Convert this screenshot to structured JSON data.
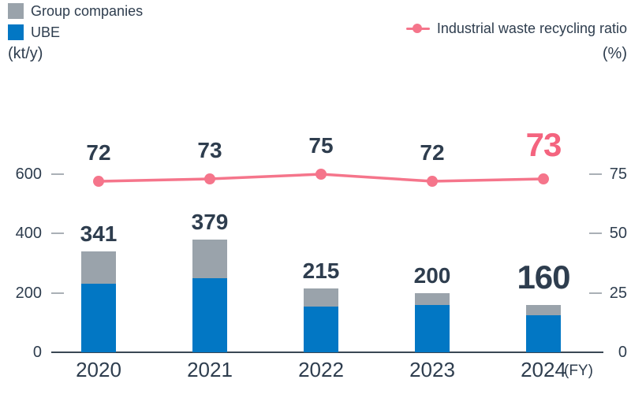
{
  "legend": {
    "group_companies": "Group companies",
    "ube": "UBE",
    "recycling_ratio": "Industrial waste recycling ratio"
  },
  "colors": {
    "navy": "#2e3d4e",
    "blue": "#0277c4",
    "gray": "#9aa3ab",
    "pink": "#f5758b",
    "pink_strong": "#f4647f",
    "dash": "#aab0b6",
    "axis": "#3a4754"
  },
  "chart_data": {
    "type": "bar",
    "subtype": "stacked-bars-with-line-overlay",
    "categories": [
      "2020",
      "2021",
      "2022",
      "2023",
      "2024"
    ],
    "fy_suffix": "(FY)",
    "series": [
      {
        "name": "UBE",
        "kind": "bar",
        "stack": "waste",
        "color_key": "blue",
        "values": [
          230,
          250,
          155,
          160,
          125
        ]
      },
      {
        "name": "Group companies",
        "kind": "bar",
        "stack": "waste",
        "color_key": "gray",
        "values": [
          111,
          129,
          60,
          40,
          35
        ]
      },
      {
        "name": "Industrial waste recycling ratio",
        "kind": "line",
        "axis": "right",
        "color_key": "pink",
        "values": [
          72,
          73,
          75,
          72,
          73
        ]
      }
    ],
    "bar_total_labels": [
      341,
      379,
      215,
      200,
      160
    ],
    "line_point_labels": [
      72,
      73,
      75,
      72,
      73
    ],
    "left_axis": {
      "unit": "(kt/y)",
      "ticks": [
        0,
        200,
        400,
        600
      ],
      "max": 600
    },
    "right_axis": {
      "unit": "(%)",
      "ticks": [
        0,
        25,
        50,
        75
      ],
      "max": 75
    },
    "legend_position": "top",
    "grid": false,
    "emphasize_last": true
  }
}
